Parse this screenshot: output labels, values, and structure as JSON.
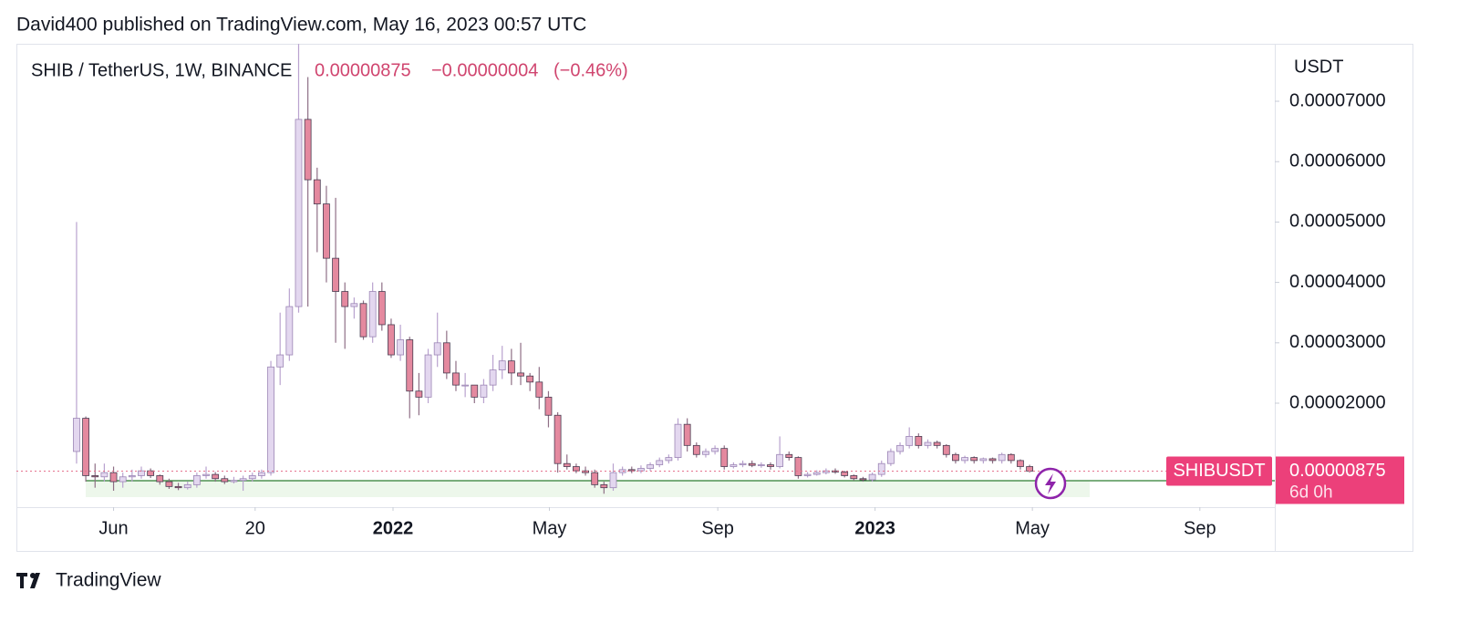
{
  "header": "David400 published on TradingView.com, May 16, 2023 00:57 UTC",
  "footer": "TradingView",
  "chart_data": {
    "type": "candlestick",
    "title": "SHIB / TetherUS, 1W, BINANCE",
    "last_price": {
      "value": 8.75e-06,
      "label": "0.00000875"
    },
    "change": {
      "value": -4e-08,
      "label": "−0.00000004"
    },
    "change_pct": {
      "value": -0.46,
      "label": "(−0.46%)"
    },
    "y_axis_label": "USDT",
    "symbol_badge": "SHIBUSDT",
    "countdown": "6d 0h",
    "up_color": "#e3d7ef",
    "down_color": "#e4899f",
    "outline_color": "#4a3d52",
    "wick_color": "#b9a2cf",
    "open": [
      1.2e-05,
      1.75e-05,
      8e-06,
      7.8e-06,
      8.5e-06,
      7e-06,
      7.8e-06,
      8e-06,
      8.8e-06,
      8e-06,
      7e-06,
      6.2e-06,
      6e-06,
      6.5e-06,
      8e-06,
      8.2e-06,
      7.5e-06,
      7e-06,
      7.2e-06,
      7.5e-06,
      8e-06,
      8.5e-06,
      2.6e-05,
      2.8e-05,
      3.6e-05,
      6.7e-05,
      5.7e-05,
      5.3e-05,
      4.4e-05,
      3.85e-05,
      3.6e-05,
      3.65e-05,
      3.1e-05,
      3.85e-05,
      3.3e-05,
      2.8e-05,
      3.05e-05,
      2.2e-05,
      2.1e-05,
      2.8e-05,
      3e-05,
      2.5e-05,
      2.3e-05,
      2.3e-05,
      2.1e-05,
      2.3e-05,
      2.55e-05,
      2.7e-05,
      2.5e-05,
      2.45e-05,
      2.35e-05,
      2.1e-05,
      1.8e-05,
      1e-05,
      9.5e-06,
      8.8e-06,
      8.5e-06,
      6.5e-06,
      6e-06,
      8.5e-06,
      9e-06,
      8.8e-06,
      9.2e-06,
      9.8e-06,
      1.05e-05,
      1.1e-05,
      1.65e-05,
      1.3e-05,
      1.15e-05,
      1.2e-05,
      1.25e-05,
      9.5e-06,
      9.8e-06,
      1e-05,
      9.7e-06,
      9.8e-06,
      9.5e-06,
      1.15e-05,
      1.1e-05,
      8e-06,
      8.2e-06,
      8.5e-06,
      8.8e-06,
      8.6e-06,
      8e-06,
      7.5e-06,
      7.3e-06,
      8.2e-06,
      1e-05,
      1.2e-05,
      1.3e-05,
      1.45e-05,
      1.3e-05,
      1.35e-05,
      1.3e-05,
      1.15e-05,
      1.05e-05,
      1.1e-05,
      1.05e-05,
      1.08e-05,
      1.05e-05,
      1.15e-05,
      1.05e-05,
      9.5e-06
    ],
    "high": [
      5e-05,
      1.78e-05,
      1e-05,
      1e-05,
      9.5e-06,
      8.5e-06,
      9e-06,
      9.5e-06,
      9.2e-06,
      8.2e-06,
      7.5e-06,
      6.8e-06,
      7e-06,
      8.5e-06,
      9.5e-06,
      8.6e-06,
      8e-06,
      7.8e-06,
      8e-06,
      8.5e-06,
      9e-06,
      2.7e-05,
      3.5e-05,
      3.9e-05,
      7.95e-05,
      7.4e-05,
      5.9e-05,
      5.6e-05,
      5.4e-05,
      4e-05,
      3.75e-05,
      3.7e-05,
      4e-05,
      4e-05,
      3.4e-05,
      3.3e-05,
      3.1e-05,
      2.5e-05,
      2.9e-05,
      3.5e-05,
      3.2e-05,
      2.7e-05,
      2.5e-05,
      2.3e-05,
      2.4e-05,
      2.8e-05,
      2.95e-05,
      2.9e-05,
      3e-05,
      2.5e-05,
      2.6e-05,
      2.2e-05,
      1.85e-05,
      1.15e-05,
      1e-05,
      9.5e-06,
      9e-06,
      7e-06,
      1e-05,
      9.5e-06,
      9.5e-06,
      9.7e-06,
      1.02e-05,
      1.1e-05,
      1.15e-05,
      1.75e-05,
      1.75e-05,
      1.35e-05,
      1.25e-05,
      1.3e-05,
      1.3e-05,
      1.02e-05,
      1.05e-05,
      1.05e-05,
      1.02e-05,
      1.02e-05,
      1.45e-05,
      1.2e-05,
      1.12e-05,
      8.6e-06,
      8.9e-06,
      9.2e-06,
      9.2e-06,
      8.8e-06,
      8.2e-06,
      7.8e-06,
      8.5e-06,
      1.05e-05,
      1.25e-05,
      1.35e-05,
      1.6e-05,
      1.5e-05,
      1.4e-05,
      1.38e-05,
      1.32e-05,
      1.18e-05,
      1.13e-05,
      1.12e-05,
      1.1e-05,
      1.1e-05,
      1.18e-05,
      1.17e-05,
      1.07e-05,
      9.8e-06
    ],
    "low": [
      1e-05,
      7e-06,
      6e-06,
      7e-06,
      5.5e-06,
      6e-06,
      7e-06,
      7.5e-06,
      7.6e-06,
      6.5e-06,
      5.8e-06,
      5.6e-06,
      5.7e-06,
      6e-06,
      7.5e-06,
      7e-06,
      6.6e-06,
      6.7e-06,
      5.5e-06,
      7e-06,
      7.5e-06,
      8e-06,
      2.3e-05,
      2.7e-05,
      3.5e-05,
      3.6e-05,
      4.5e-05,
      4e-05,
      3e-05,
      2.9e-05,
      3.4e-05,
      3.05e-05,
      3e-05,
      3.2e-05,
      2.75e-05,
      2.7e-05,
      1.75e-05,
      1.8e-05,
      2e-05,
      2.6e-05,
      2.4e-05,
      2.2e-05,
      2.1e-05,
      2e-05,
      2e-05,
      2.2e-05,
      2.4e-05,
      2.3e-05,
      2.3e-05,
      2.2e-05,
      1.9e-05,
      1.6e-05,
      8.5e-06,
      9e-06,
      8.4e-06,
      8e-06,
      6e-06,
      5e-06,
      5.5e-06,
      8e-06,
      8.4e-06,
      8.4e-06,
      8.8e-06,
      9.4e-06,
      1e-05,
      1.05e-05,
      1.2e-05,
      1.1e-05,
      1.1e-05,
      1.15e-05,
      9e-06,
      9.2e-06,
      9.4e-06,
      9.4e-06,
      9.3e-06,
      9e-06,
      9.2e-06,
      1.05e-05,
      7.5e-06,
      7.7e-06,
      8e-06,
      8.2e-06,
      8.3e-06,
      7.7e-06,
      7.2e-06,
      7e-06,
      7e-06,
      7.8e-06,
      9.6e-06,
      1.15e-05,
      1.25e-05,
      1.25e-05,
      1.25e-05,
      1.25e-05,
      1.1e-05,
      1e-05,
      1e-05,
      1e-05,
      1e-05,
      1e-05,
      1e-05,
      1e-05,
      9e-06,
      8.5e-06
    ],
    "close": [
      1.75e-05,
      8e-06,
      7.8e-06,
      8.5e-06,
      7e-06,
      7.8e-06,
      8e-06,
      8.8e-06,
      8e-06,
      7e-06,
      6.2e-06,
      6e-06,
      6.5e-06,
      8e-06,
      8.2e-06,
      7.5e-06,
      7e-06,
      7.2e-06,
      7.5e-06,
      8e-06,
      8.5e-06,
      2.6e-05,
      2.8e-05,
      3.6e-05,
      6.7e-05,
      5.7e-05,
      5.3e-05,
      4.4e-05,
      3.85e-05,
      3.6e-05,
      3.65e-05,
      3.1e-05,
      3.85e-05,
      3.3e-05,
      2.8e-05,
      3.05e-05,
      2.2e-05,
      2.1e-05,
      2.8e-05,
      3e-05,
      2.5e-05,
      2.3e-05,
      2.3e-05,
      2.1e-05,
      2.3e-05,
      2.55e-05,
      2.7e-05,
      2.5e-05,
      2.45e-05,
      2.35e-05,
      2.1e-05,
      1.8e-05,
      1e-05,
      9.5e-06,
      8.8e-06,
      8.5e-06,
      6.5e-06,
      6e-06,
      8.5e-06,
      9e-06,
      8.8e-06,
      9.2e-06,
      9.8e-06,
      1.05e-05,
      1.1e-05,
      1.65e-05,
      1.3e-05,
      1.15e-05,
      1.2e-05,
      1.25e-05,
      9.5e-06,
      9.8e-06,
      1e-05,
      9.7e-06,
      9.8e-06,
      9.5e-06,
      1.15e-05,
      1.1e-05,
      8e-06,
      8.2e-06,
      8.5e-06,
      8.8e-06,
      8.6e-06,
      8e-06,
      7.5e-06,
      7.3e-06,
      8.2e-06,
      1e-05,
      1.2e-05,
      1.3e-05,
      1.45e-05,
      1.3e-05,
      1.35e-05,
      1.3e-05,
      1.15e-05,
      1.05e-05,
      1.1e-05,
      1.05e-05,
      1.08e-05,
      1.05e-05,
      1.15e-05,
      1.05e-05,
      9.5e-06,
      8.75e-06
    ],
    "xlim": [
      -6.5,
      129.5
    ],
    "xticks": [
      {
        "value": 4.0,
        "label": "Jun"
      },
      {
        "value": 19.3,
        "label": "20"
      },
      {
        "value": 34.2,
        "label": "2022"
      },
      {
        "value": 51.1,
        "label": "May"
      },
      {
        "value": 69.3,
        "label": "Sep"
      },
      {
        "value": 86.3,
        "label": "2023"
      },
      {
        "value": 103.3,
        "label": "May"
      },
      {
        "value": 121.4,
        "label": "Sep"
      }
    ],
    "ylim": [
      2.78e-06,
      7.952e-05
    ],
    "yticks": [
      {
        "value": 2e-05,
        "label": "0.00002000"
      },
      {
        "value": 3e-05,
        "label": "0.00003000"
      },
      {
        "value": 4e-05,
        "label": "0.00004000"
      },
      {
        "value": 5e-05,
        "label": "0.00005000"
      },
      {
        "value": 6e-05,
        "label": "0.00006000"
      },
      {
        "value": 7e-05,
        "label": "0.00007000"
      }
    ]
  }
}
